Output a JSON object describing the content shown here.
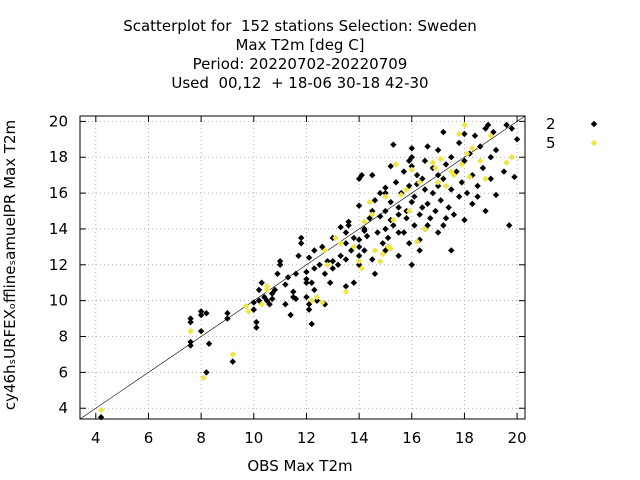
{
  "chart_data": {
    "type": "scatter",
    "title_lines": [
      "Scatterplot for  152 stations Selection: Sweden",
      "Max T2m [deg C]",
      "Period: 20220702-20220709",
      "Used  00,12  + 18-06 30-18 42-30"
    ],
    "xlabel": "OBS Max T2m",
    "ylabel": "cy46hₛURFEXₒfflineₛamuelPR Max T2m",
    "xlim": [
      3.4,
      20.3
    ],
    "ylim": [
      3.4,
      20.3
    ],
    "xticks": [
      4,
      6,
      8,
      10,
      12,
      14,
      16,
      18,
      20
    ],
    "yticks": [
      4,
      6,
      8,
      10,
      12,
      14,
      16,
      18,
      20
    ],
    "grid": true,
    "legend_position": "outside-right",
    "diagonal": true,
    "series": [
      {
        "name": "2",
        "color": "#000000",
        "points": [
          [
            4.2,
            3.5
          ],
          [
            7.6,
            7.5
          ],
          [
            7.6,
            7.7
          ],
          [
            7.6,
            8.8
          ],
          [
            7.6,
            9.0
          ],
          [
            8.0,
            9.2
          ],
          [
            8.0,
            9.4
          ],
          [
            8.0,
            8.3
          ],
          [
            8.2,
            6.0
          ],
          [
            8.2,
            9.3
          ],
          [
            8.3,
            7.6
          ],
          [
            9.0,
            9.0
          ],
          [
            9.0,
            9.3
          ],
          [
            9.2,
            6.6
          ],
          [
            10.0,
            9.5
          ],
          [
            10.0,
            9.9
          ],
          [
            10.1,
            8.5
          ],
          [
            10.1,
            8.8
          ],
          [
            10.2,
            10.0
          ],
          [
            10.2,
            10.6
          ],
          [
            10.3,
            11.0
          ],
          [
            10.5,
            10.0
          ],
          [
            10.6,
            9.8
          ],
          [
            10.7,
            10.1
          ],
          [
            10.7,
            10.4
          ],
          [
            10.8,
            10.6
          ],
          [
            10.9,
            11.5
          ],
          [
            11.0,
            12.0
          ],
          [
            11.2,
            9.8
          ],
          [
            11.2,
            10.9
          ],
          [
            11.3,
            11.3
          ],
          [
            11.4,
            9.2
          ],
          [
            11.5,
            10.2
          ],
          [
            11.5,
            10.5
          ],
          [
            11.6,
            11.5
          ],
          [
            11.7,
            12.5
          ],
          [
            11.8,
            13.2
          ],
          [
            11.8,
            13.5
          ],
          [
            12.0,
            10.2
          ],
          [
            12.0,
            11.0
          ],
          [
            12.0,
            11.2
          ],
          [
            12.0,
            11.6
          ],
          [
            12.1,
            9.5
          ],
          [
            12.1,
            9.8
          ],
          [
            12.1,
            12.4
          ],
          [
            12.2,
            8.7
          ],
          [
            12.2,
            11.0
          ],
          [
            12.3,
            10.6
          ],
          [
            12.3,
            11.8
          ],
          [
            12.4,
            10.0
          ],
          [
            12.5,
            12.0
          ],
          [
            12.6,
            13.0
          ],
          [
            12.7,
            9.8
          ],
          [
            12.7,
            11.5
          ],
          [
            12.8,
            12.2
          ],
          [
            12.9,
            11.0
          ],
          [
            13.0,
            11.8
          ],
          [
            13.0,
            13.5
          ],
          [
            13.2,
            12.0
          ],
          [
            13.3,
            12.5
          ],
          [
            13.5,
            10.8
          ],
          [
            13.5,
            12.3
          ],
          [
            13.5,
            13.2
          ],
          [
            13.5,
            13.8
          ],
          [
            13.6,
            14.2
          ],
          [
            13.6,
            14.4
          ],
          [
            13.7,
            12.8
          ],
          [
            13.8,
            13.5
          ],
          [
            13.8,
            11.0
          ],
          [
            14.0,
            12.0
          ],
          [
            14.0,
            12.5
          ],
          [
            14.0,
            13.0
          ],
          [
            14.0,
            13.4
          ],
          [
            14.0,
            15.3
          ],
          [
            14.0,
            16.8
          ],
          [
            14.1,
            17.0
          ],
          [
            14.2,
            12.8
          ],
          [
            14.2,
            14.0
          ],
          [
            14.3,
            13.6
          ],
          [
            14.4,
            14.6
          ],
          [
            14.5,
            12.3
          ],
          [
            14.5,
            15.0
          ],
          [
            14.5,
            17.0
          ],
          [
            14.6,
            11.5
          ],
          [
            14.7,
            13.8
          ],
          [
            14.8,
            14.7
          ],
          [
            14.9,
            13.2
          ],
          [
            15.0,
            12.8
          ],
          [
            15.0,
            14.0
          ],
          [
            15.0,
            15.0
          ],
          [
            15.0,
            16.0
          ],
          [
            15.0,
            16.3
          ],
          [
            15.1,
            13.0
          ],
          [
            15.1,
            13.5
          ],
          [
            15.2,
            14.5
          ],
          [
            15.2,
            15.5
          ],
          [
            15.3,
            14.2
          ],
          [
            15.3,
            18.7
          ],
          [
            15.4,
            16.6
          ],
          [
            15.5,
            12.5
          ],
          [
            15.5,
            14.8
          ],
          [
            15.5,
            15.2
          ],
          [
            15.6,
            16.0
          ],
          [
            15.7,
            13.8
          ],
          [
            15.7,
            17.2
          ],
          [
            15.8,
            14.6
          ],
          [
            15.8,
            15.0
          ],
          [
            15.9,
            13.2
          ],
          [
            15.9,
            16.4
          ],
          [
            16.0,
            12.0
          ],
          [
            16.0,
            15.5
          ],
          [
            16.0,
            17.5
          ],
          [
            16.0,
            18.0
          ],
          [
            16.1,
            14.2
          ],
          [
            16.1,
            15.8
          ],
          [
            16.2,
            16.5
          ],
          [
            16.2,
            17.0
          ],
          [
            16.3,
            13.4
          ],
          [
            16.3,
            14.8
          ],
          [
            16.4,
            15.2
          ],
          [
            16.4,
            16.8
          ],
          [
            16.5,
            14.0
          ],
          [
            16.5,
            16.2
          ],
          [
            16.5,
            17.8
          ],
          [
            16.6,
            15.4
          ],
          [
            16.6,
            18.6
          ],
          [
            16.7,
            14.6
          ],
          [
            16.8,
            16.0
          ],
          [
            16.8,
            17.4
          ],
          [
            16.9,
            15.0
          ],
          [
            17.0,
            13.8
          ],
          [
            17.0,
            16.4
          ],
          [
            17.0,
            17.0
          ],
          [
            17.0,
            18.4
          ],
          [
            17.1,
            15.6
          ],
          [
            17.2,
            14.2
          ],
          [
            17.2,
            16.8
          ],
          [
            17.3,
            17.6
          ],
          [
            17.4,
            15.2
          ],
          [
            17.5,
            16.2
          ],
          [
            17.5,
            18.0
          ],
          [
            17.6,
            14.8
          ],
          [
            17.7,
            17.2
          ],
          [
            17.8,
            15.8
          ],
          [
            17.8,
            18.8
          ],
          [
            17.9,
            16.6
          ],
          [
            18.0,
            14.5
          ],
          [
            18.0,
            17.8
          ],
          [
            18.1,
            16.0
          ],
          [
            18.2,
            18.2
          ],
          [
            18.3,
            15.4
          ],
          [
            18.3,
            17.0
          ],
          [
            18.4,
            19.2
          ],
          [
            18.5,
            16.4
          ],
          [
            18.6,
            18.6
          ],
          [
            18.7,
            17.4
          ],
          [
            18.8,
            15.0
          ],
          [
            18.8,
            19.6
          ],
          [
            18.9,
            19.8
          ],
          [
            19.0,
            18.0
          ],
          [
            19.0,
            16.8
          ],
          [
            19.1,
            19.4
          ],
          [
            19.2,
            18.4
          ],
          [
            19.5,
            17.2
          ],
          [
            19.6,
            19.8
          ],
          [
            19.7,
            14.2
          ],
          [
            19.8,
            19.6
          ],
          [
            19.9,
            16.9
          ],
          [
            20.0,
            19.0
          ],
          [
            17.5,
            12.8
          ],
          [
            16.3,
            12.8
          ],
          [
            14.8,
            16.0
          ],
          [
            13.0,
            12.2
          ],
          [
            12.3,
            12.8
          ],
          [
            15.5,
            13.8
          ],
          [
            16.6,
            14.2
          ],
          [
            17.3,
            14.6
          ],
          [
            18.5,
            15.8
          ],
          [
            19.2,
            15.9
          ],
          [
            14.2,
            13.9
          ],
          [
            15.2,
            17.5
          ],
          [
            16.0,
            18.5
          ],
          [
            17.2,
            19.4
          ],
          [
            18.0,
            19.3
          ],
          [
            11.0,
            12.2
          ],
          [
            10.4,
            10.2
          ],
          [
            11.6,
            10.1
          ],
          [
            13.3,
            14.1
          ],
          [
            14.6,
            15.6
          ],
          [
            15.9,
            17.8
          ]
        ]
      },
      {
        "name": "5",
        "color": "#f0e442",
        "points": [
          [
            4.2,
            3.9
          ],
          [
            7.6,
            8.3
          ],
          [
            8.1,
            5.7
          ],
          [
            9.2,
            7.0
          ],
          [
            9.7,
            9.7
          ],
          [
            9.8,
            9.4
          ],
          [
            10.3,
            9.8
          ],
          [
            10.5,
            10.8
          ],
          [
            10.5,
            10.6
          ],
          [
            12.2,
            10.0
          ],
          [
            12.4,
            10.2
          ],
          [
            12.6,
            9.9
          ],
          [
            12.7,
            12.8
          ],
          [
            12.8,
            12.0
          ],
          [
            13.1,
            13.5
          ],
          [
            13.3,
            13.2
          ],
          [
            13.5,
            10.5
          ],
          [
            13.8,
            13.0
          ],
          [
            14.0,
            12.2
          ],
          [
            14.1,
            11.8
          ],
          [
            14.2,
            14.4
          ],
          [
            14.4,
            15.5
          ],
          [
            14.5,
            14.8
          ],
          [
            14.6,
            12.8
          ],
          [
            14.8,
            12.2
          ],
          [
            14.9,
            12.6
          ],
          [
            15.0,
            15.8
          ],
          [
            15.1,
            13.0
          ],
          [
            15.2,
            12.9
          ],
          [
            15.3,
            14.5
          ],
          [
            15.4,
            17.6
          ],
          [
            15.6,
            15.9
          ],
          [
            15.8,
            16.2
          ],
          [
            15.9,
            15.0
          ],
          [
            16.0,
            17.3
          ],
          [
            16.2,
            13.3
          ],
          [
            16.3,
            16.6
          ],
          [
            16.5,
            14.0
          ],
          [
            16.8,
            17.7
          ],
          [
            16.9,
            17.4
          ],
          [
            17.0,
            16.6
          ],
          [
            17.1,
            17.9
          ],
          [
            17.3,
            16.4
          ],
          [
            17.5,
            17.2
          ],
          [
            17.6,
            17.0
          ],
          [
            17.8,
            19.3
          ],
          [
            17.9,
            17.6
          ],
          [
            18.0,
            19.8
          ],
          [
            18.1,
            18.2
          ],
          [
            18.2,
            16.9
          ],
          [
            18.3,
            18.5
          ],
          [
            18.6,
            17.8
          ],
          [
            18.8,
            16.8
          ],
          [
            19.0,
            19.2
          ],
          [
            19.6,
            17.7
          ],
          [
            19.8,
            18.0
          ]
        ]
      }
    ]
  }
}
